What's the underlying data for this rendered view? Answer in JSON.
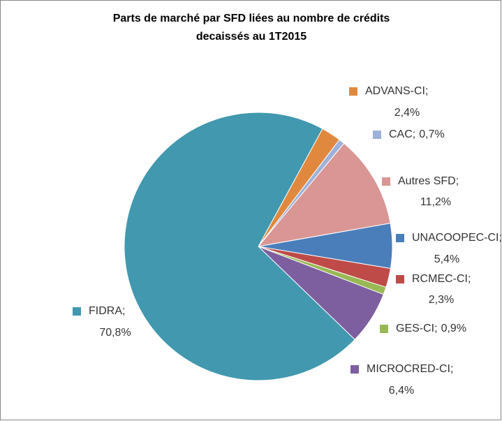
{
  "chart_data": {
    "type": "pie",
    "title": "Parts de marché par SFD liées au nombre de crédits decaissés au 1T2015",
    "categories": [
      "ADVANS-CI",
      "CAC",
      "Autres SFD",
      "UNACOOPEC-CI",
      "RCMEC-CI",
      "GES-CI",
      "MICROCRED-CI",
      "FIDRA"
    ],
    "values": [
      2.4,
      0.7,
      11.2,
      5.4,
      2.3,
      0.9,
      6.4,
      70.8
    ],
    "value_labels": [
      "2,4%",
      "0,7%",
      "11,2%",
      "5,4%",
      "2,3%",
      "0,9%",
      "6,4%",
      "70,8%"
    ],
    "label_separator": ";",
    "colors": [
      "#E0893E",
      "#9DB1DA",
      "#D99694",
      "#4A7EBB",
      "#BE4B48",
      "#98B954",
      "#7D5FA0",
      "#4198AF"
    ]
  }
}
